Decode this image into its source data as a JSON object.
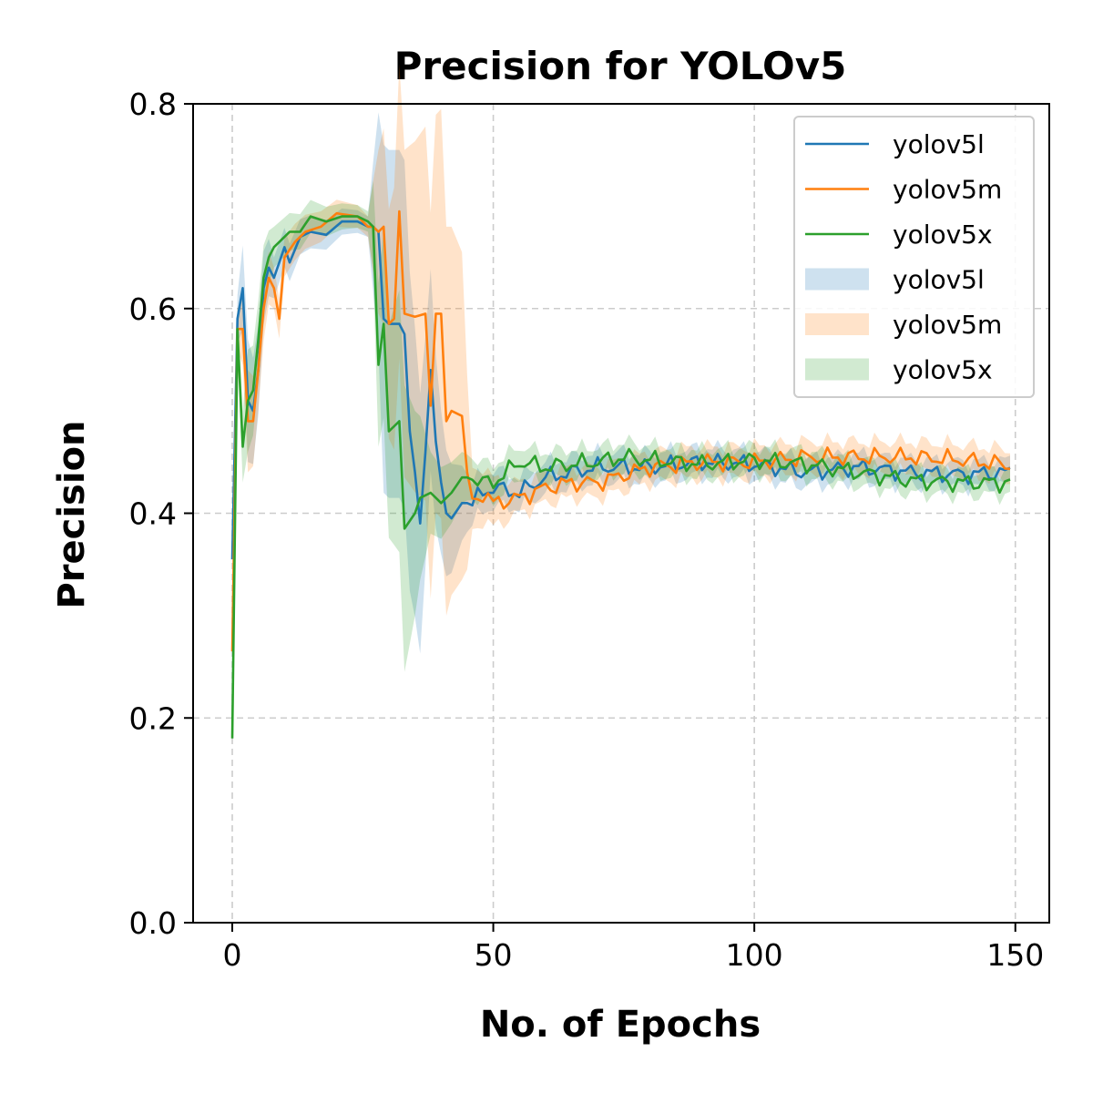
{
  "colors": {
    "yolov5l": "#1f77b4",
    "yolov5m": "#ff7f0e",
    "yolov5x": "#2ca02c",
    "grid": "#cccccc",
    "axis": "#000000"
  },
  "chart_data": {
    "type": "line",
    "title": "Precision for YOLOv5",
    "xlabel": "No. of Epochs",
    "ylabel": "Precision",
    "xlim": [
      -7.5,
      156.5
    ],
    "ylim": [
      0.0,
      0.8
    ],
    "xticks": [
      0,
      50,
      100,
      150
    ],
    "yticks": [
      0.0,
      0.2,
      0.4,
      0.6,
      0.8
    ],
    "xtick_labels": [
      "0",
      "50",
      "100",
      "150"
    ],
    "ytick_labels": [
      "0.0",
      "0.2",
      "0.4",
      "0.6",
      "0.8"
    ],
    "grid": true,
    "grid_style": "dashed",
    "legend_position": "upper right",
    "x_range": [
      0,
      149
    ],
    "series": [
      {
        "name": "yolov5l",
        "color": "#1f77b4",
        "anchors": [
          [
            0,
            0.355
          ],
          [
            1,
            0.59
          ],
          [
            2,
            0.62
          ],
          [
            3,
            0.51
          ],
          [
            4,
            0.5
          ],
          [
            5,
            0.54
          ],
          [
            6,
            0.62
          ],
          [
            7,
            0.64
          ],
          [
            8,
            0.63
          ],
          [
            10,
            0.66
          ],
          [
            11,
            0.645
          ],
          [
            13,
            0.67
          ],
          [
            15,
            0.675
          ],
          [
            18,
            0.672
          ],
          [
            21,
            0.685
          ],
          [
            24,
            0.685
          ],
          [
            26,
            0.68
          ],
          [
            27,
            0.68
          ],
          [
            28,
            0.675
          ],
          [
            29,
            0.59
          ],
          [
            30,
            0.585
          ],
          [
            31,
            0.585
          ],
          [
            32,
            0.585
          ],
          [
            33,
            0.575
          ],
          [
            34,
            0.48
          ],
          [
            35,
            0.44
          ],
          [
            36,
            0.39
          ],
          [
            37,
            0.46
          ],
          [
            38,
            0.54
          ],
          [
            39,
            0.47
          ],
          [
            40,
            0.43
          ],
          [
            41,
            0.4
          ],
          [
            42,
            0.395
          ],
          [
            44,
            0.41
          ],
          [
            46,
            0.41
          ],
          [
            48,
            0.42
          ],
          [
            50,
            0.425
          ],
          [
            55,
            0.42
          ],
          [
            60,
            0.435
          ],
          [
            65,
            0.44
          ],
          [
            70,
            0.445
          ],
          [
            80,
            0.445
          ],
          [
            90,
            0.45
          ],
          [
            100,
            0.448
          ],
          [
            110,
            0.44
          ],
          [
            120,
            0.445
          ],
          [
            130,
            0.44
          ],
          [
            140,
            0.438
          ],
          [
            149,
            0.44
          ]
        ],
        "band_width": [
          [
            0,
            0.005
          ],
          [
            3,
            0.06
          ],
          [
            8,
            0.02
          ],
          [
            26,
            0.01
          ],
          [
            29,
            0.17
          ],
          [
            33,
            0.17
          ],
          [
            40,
            0.07
          ],
          [
            46,
            0.02
          ],
          [
            55,
            0.015
          ],
          [
            149,
            0.012
          ]
        ]
      },
      {
        "name": "yolov5m",
        "color": "#ff7f0e",
        "anchors": [
          [
            0,
            0.265
          ],
          [
            1,
            0.58
          ],
          [
            2,
            0.58
          ],
          [
            3,
            0.49
          ],
          [
            4,
            0.49
          ],
          [
            5,
            0.54
          ],
          [
            6,
            0.6
          ],
          [
            7,
            0.63
          ],
          [
            8,
            0.62
          ],
          [
            9,
            0.59
          ],
          [
            10,
            0.65
          ],
          [
            12,
            0.665
          ],
          [
            14,
            0.675
          ],
          [
            17,
            0.68
          ],
          [
            20,
            0.693
          ],
          [
            24,
            0.69
          ],
          [
            26,
            0.68
          ],
          [
            27,
            0.68
          ],
          [
            28,
            0.675
          ],
          [
            29,
            0.68
          ],
          [
            30,
            0.585
          ],
          [
            31,
            0.59
          ],
          [
            32,
            0.695
          ],
          [
            33,
            0.595
          ],
          [
            35,
            0.592
          ],
          [
            37,
            0.595
          ],
          [
            38,
            0.505
          ],
          [
            39,
            0.595
          ],
          [
            40,
            0.595
          ],
          [
            41,
            0.49
          ],
          [
            42,
            0.5
          ],
          [
            44,
            0.495
          ],
          [
            45,
            0.44
          ],
          [
            46,
            0.41
          ],
          [
            48,
            0.42
          ],
          [
            50,
            0.41
          ],
          [
            55,
            0.415
          ],
          [
            60,
            0.425
          ],
          [
            65,
            0.43
          ],
          [
            70,
            0.43
          ],
          [
            80,
            0.445
          ],
          [
            90,
            0.45
          ],
          [
            100,
            0.45
          ],
          [
            110,
            0.455
          ],
          [
            120,
            0.455
          ],
          [
            130,
            0.455
          ],
          [
            140,
            0.452
          ],
          [
            149,
            0.447
          ]
        ],
        "band_width": [
          [
            0,
            0.005
          ],
          [
            3,
            0.05
          ],
          [
            8,
            0.02
          ],
          [
            26,
            0.01
          ],
          [
            28,
            0.08
          ],
          [
            33,
            0.16
          ],
          [
            40,
            0.2
          ],
          [
            44,
            0.16
          ],
          [
            46,
            0.03
          ],
          [
            55,
            0.015
          ],
          [
            149,
            0.015
          ]
        ]
      },
      {
        "name": "yolov5x",
        "color": "#2ca02c",
        "anchors": [
          [
            0,
            0.18
          ],
          [
            1,
            0.58
          ],
          [
            2,
            0.465
          ],
          [
            3,
            0.51
          ],
          [
            4,
            0.52
          ],
          [
            5,
            0.57
          ],
          [
            6,
            0.63
          ],
          [
            7,
            0.65
          ],
          [
            8,
            0.66
          ],
          [
            10,
            0.67
          ],
          [
            11,
            0.675
          ],
          [
            13,
            0.675
          ],
          [
            15,
            0.69
          ],
          [
            18,
            0.685
          ],
          [
            21,
            0.69
          ],
          [
            24,
            0.69
          ],
          [
            26,
            0.685
          ],
          [
            27,
            0.68
          ],
          [
            28,
            0.545
          ],
          [
            29,
            0.585
          ],
          [
            30,
            0.48
          ],
          [
            31,
            0.485
          ],
          [
            32,
            0.49
          ],
          [
            33,
            0.385
          ],
          [
            35,
            0.4
          ],
          [
            36,
            0.415
          ],
          [
            38,
            0.42
          ],
          [
            40,
            0.41
          ],
          [
            42,
            0.42
          ],
          [
            44,
            0.435
          ],
          [
            46,
            0.435
          ],
          [
            48,
            0.43
          ],
          [
            50,
            0.43
          ],
          [
            55,
            0.45
          ],
          [
            60,
            0.445
          ],
          [
            65,
            0.448
          ],
          [
            70,
            0.45
          ],
          [
            75,
            0.455
          ],
          [
            80,
            0.452
          ],
          [
            90,
            0.448
          ],
          [
            100,
            0.452
          ],
          [
            110,
            0.448
          ],
          [
            120,
            0.44
          ],
          [
            130,
            0.432
          ],
          [
            140,
            0.43
          ],
          [
            149,
            0.43
          ]
        ],
        "band_width": [
          [
            0,
            0.005
          ],
          [
            3,
            0.05
          ],
          [
            8,
            0.02
          ],
          [
            26,
            0.01
          ],
          [
            28,
            0.08
          ],
          [
            33,
            0.14
          ],
          [
            38,
            0.04
          ],
          [
            46,
            0.02
          ],
          [
            55,
            0.015
          ],
          [
            149,
            0.012
          ]
        ]
      }
    ],
    "legend_entries": [
      {
        "label": "yolov5l",
        "kind": "line",
        "color": "#1f77b4"
      },
      {
        "label": "yolov5m",
        "kind": "line",
        "color": "#ff7f0e"
      },
      {
        "label": "yolov5x",
        "kind": "line",
        "color": "#2ca02c"
      },
      {
        "label": "yolov5l",
        "kind": "band",
        "color": "#1f77b4"
      },
      {
        "label": "yolov5m",
        "kind": "band",
        "color": "#ff7f0e"
      },
      {
        "label": "yolov5x",
        "kind": "band",
        "color": "#2ca02c"
      }
    ]
  }
}
